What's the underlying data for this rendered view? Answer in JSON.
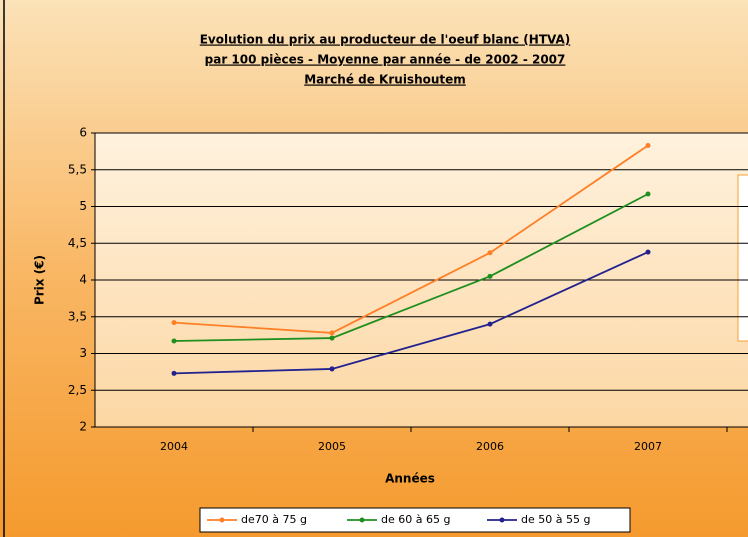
{
  "chart_data": {
    "type": "line",
    "title": [
      "Evolution du prix au producteur de l'oeuf blanc (HTVA)",
      "par 100 pièces - Moyenne par année - de 2002 - 2007",
      "Marché de Kruishoutem"
    ],
    "x_label": "Années",
    "y_label": "Prix (€)",
    "categories": [
      "2004",
      "2005",
      "2006",
      "2007"
    ],
    "series": [
      {
        "name": "de70 à 75 g",
        "color": "#ff7f27",
        "values": [
          3.42,
          3.28,
          4.37,
          5.83
        ]
      },
      {
        "name": "de 60 à 65 g",
        "color": "#1f8f1f",
        "values": [
          3.17,
          3.21,
          4.05,
          5.17
        ]
      },
      {
        "name": "de 50 à 55 g",
        "color": "#22228f",
        "values": [
          2.73,
          2.79,
          3.4,
          4.38
        ]
      }
    ],
    "ylim": [
      2,
      6
    ],
    "yticks": [
      2,
      {
        "value": 2.5,
        "label": "2,5"
      },
      3,
      {
        "value": 3.5,
        "label": "3,5"
      },
      4,
      {
        "value": 4.5,
        "label": "4,5"
      },
      5,
      {
        "value": 5.5,
        "label": "5,5"
      },
      6
    ],
    "grid": true,
    "legend": "bottom"
  }
}
